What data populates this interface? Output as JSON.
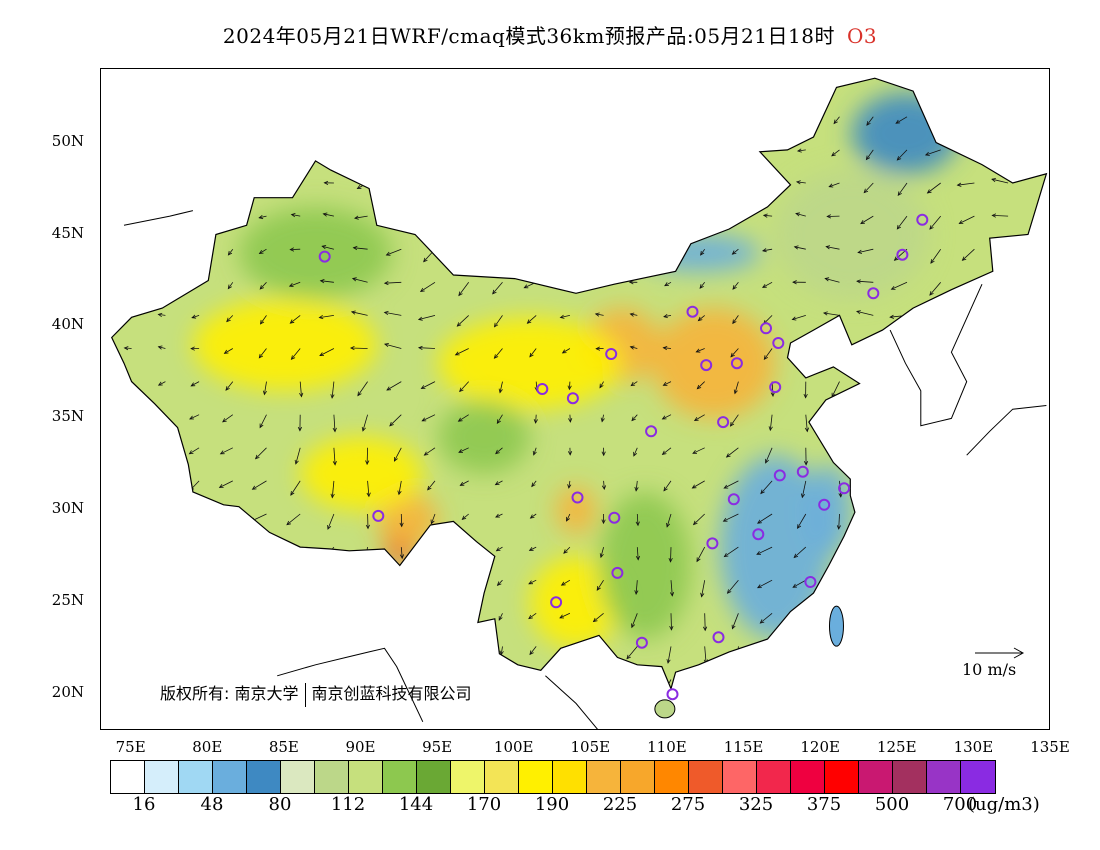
{
  "header": {
    "title": "2024年05月21日WRF/cmaq模式36km预报产品:05月21日18时",
    "pollutant": "O3"
  },
  "axes": {
    "lat_labels": [
      "50N",
      "45N",
      "40N",
      "35N",
      "30N",
      "25N",
      "20N"
    ],
    "lon_labels": [
      "75E",
      "80E",
      "85E",
      "90E",
      "95E",
      "100E",
      "105E",
      "110E",
      "115E",
      "120E",
      "125E",
      "130E",
      "135E"
    ],
    "lon_range": [
      73,
      135
    ],
    "lat_range": [
      18,
      54
    ]
  },
  "copyright": {
    "prefix": "版权所有:",
    "org1": "南京大学",
    "org2": "南京创蓝科技有限公司"
  },
  "wind_reference": {
    "label": "10 m/s"
  },
  "legend": {
    "colors": [
      "#ffffff",
      "#d5eefb",
      "#a0d8f3",
      "#6aaedd",
      "#3e89c2",
      "#dbe8c0",
      "#bcd789",
      "#c6e07d",
      "#8dc84f",
      "#6aa834",
      "#eef56a",
      "#f3e456",
      "#fff000",
      "#ffe000",
      "#f6b43b",
      "#f7a72b",
      "#ff8700",
      "#ef5a2a",
      "#fe6666",
      "#f2274c",
      "#ef0040",
      "#ff0000",
      "#c91871",
      "#a3305f",
      "#9834c6",
      "#8a2be2"
    ],
    "ticks": [
      "16",
      "48",
      "80",
      "112",
      "144",
      "170",
      "190",
      "225",
      "275",
      "325",
      "375",
      "500",
      "700"
    ],
    "unit": "(ug/m3)"
  },
  "stations": [
    {
      "lon": 87.6,
      "lat": 43.8
    },
    {
      "lon": 91.1,
      "lat": 29.7
    },
    {
      "lon": 101.8,
      "lat": 36.6
    },
    {
      "lon": 103.8,
      "lat": 36.1
    },
    {
      "lon": 106.3,
      "lat": 38.5
    },
    {
      "lon": 111.6,
      "lat": 40.8
    },
    {
      "lon": 116.4,
      "lat": 39.9
    },
    {
      "lon": 117.2,
      "lat": 39.1
    },
    {
      "lon": 114.5,
      "lat": 38.0
    },
    {
      "lon": 112.5,
      "lat": 37.9
    },
    {
      "lon": 117.0,
      "lat": 36.7
    },
    {
      "lon": 113.6,
      "lat": 34.8
    },
    {
      "lon": 108.9,
      "lat": 34.3
    },
    {
      "lon": 104.1,
      "lat": 30.7
    },
    {
      "lon": 106.5,
      "lat": 29.6
    },
    {
      "lon": 106.7,
      "lat": 26.6
    },
    {
      "lon": 102.7,
      "lat": 25.0
    },
    {
      "lon": 108.3,
      "lat": 22.8
    },
    {
      "lon": 113.3,
      "lat": 23.1
    },
    {
      "lon": 110.3,
      "lat": 20.0
    },
    {
      "lon": 112.9,
      "lat": 28.2
    },
    {
      "lon": 114.3,
      "lat": 30.6
    },
    {
      "lon": 115.9,
      "lat": 28.7
    },
    {
      "lon": 117.3,
      "lat": 31.9
    },
    {
      "lon": 118.8,
      "lat": 32.1
    },
    {
      "lon": 120.2,
      "lat": 30.3
    },
    {
      "lon": 121.5,
      "lat": 31.2
    },
    {
      "lon": 119.3,
      "lat": 26.1
    },
    {
      "lon": 123.4,
      "lat": 41.8
    },
    {
      "lon": 125.3,
      "lat": 43.9
    },
    {
      "lon": 126.6,
      "lat": 45.8
    }
  ],
  "zones": [
    {
      "color": "#3e89c2",
      "lon": 125.5,
      "lat": 50.5,
      "rx": 3.5,
      "ry": 2.2
    },
    {
      "color": "#6aaedd",
      "lon": 117.0,
      "lat": 28.0,
      "rx": 3.6,
      "ry": 5.0
    },
    {
      "color": "#6aaedd",
      "lon": 120.5,
      "lat": 30.0,
      "rx": 1.5,
      "ry": 2.5
    },
    {
      "color": "#6aaedd",
      "lon": 112.0,
      "lat": 44.0,
      "rx": 4.0,
      "ry": 1.0
    },
    {
      "color": "#f6b43b",
      "lon": 113.0,
      "lat": 38.0,
      "rx": 4.0,
      "ry": 3.0
    },
    {
      "color": "#f6b43b",
      "lon": 107.0,
      "lat": 39.0,
      "rx": 2.5,
      "ry": 2.0
    },
    {
      "color": "#ef5a2a",
      "lon": 92.5,
      "lat": 28.0,
      "rx": 1.0,
      "ry": 1.0
    },
    {
      "color": "#f6b43b",
      "lon": 93.0,
      "lat": 29.5,
      "rx": 2.0,
      "ry": 1.5
    },
    {
      "color": "#f6b43b",
      "lon": 104.0,
      "lat": 30.0,
      "rx": 1.3,
      "ry": 1.3
    },
    {
      "color": "#fff000",
      "lon": 85.0,
      "lat": 39.0,
      "rx": 6.0,
      "ry": 2.5
    },
    {
      "color": "#fff000",
      "lon": 101.0,
      "lat": 38.0,
      "rx": 6.0,
      "ry": 2.5
    },
    {
      "color": "#fff000",
      "lon": 104.0,
      "lat": 25.0,
      "rx": 3.0,
      "ry": 2.5
    },
    {
      "color": "#fff000",
      "lon": 90.0,
      "lat": 32.0,
      "rx": 4.0,
      "ry": 2.0
    },
    {
      "color": "#8dc84f",
      "lon": 87.0,
      "lat": 44.0,
      "rx": 5.0,
      "ry": 2.5
    },
    {
      "color": "#8dc84f",
      "lon": 98.0,
      "lat": 34.0,
      "rx": 3.0,
      "ry": 2.0
    },
    {
      "color": "#8dc84f",
      "lon": 108.5,
      "lat": 27.0,
      "rx": 3.0,
      "ry": 4.0
    },
    {
      "color": "#bcd789",
      "lon": 122.0,
      "lat": 45.0,
      "rx": 5.0,
      "ry": 3.5
    }
  ]
}
